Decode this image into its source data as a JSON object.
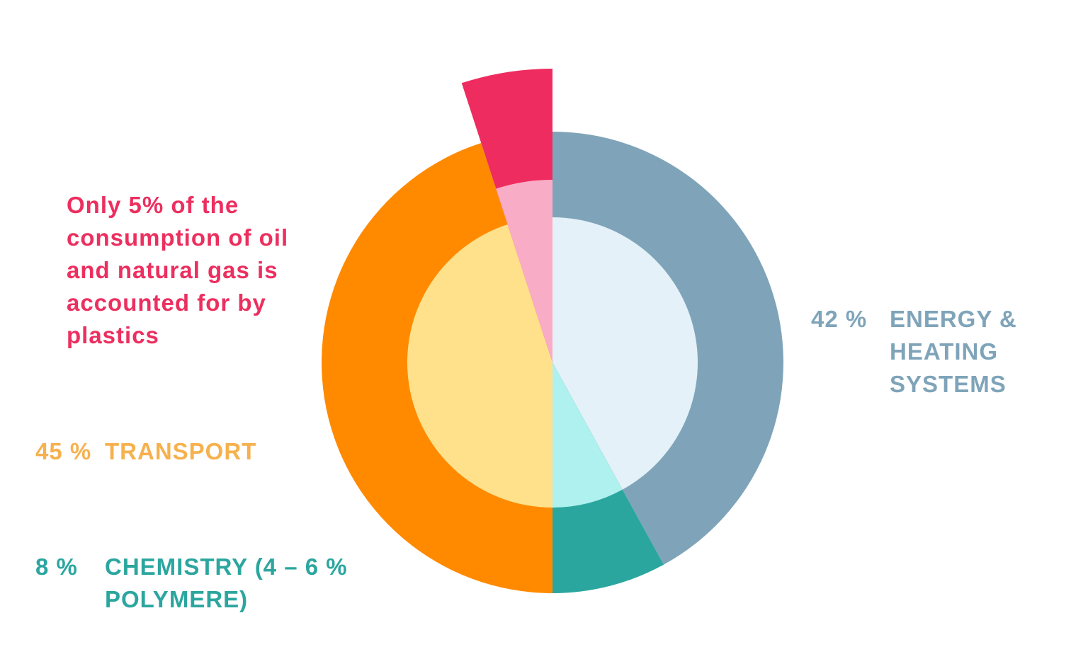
{
  "chart_data": {
    "type": "pie",
    "categories": [
      "ENERGY & HEATING SYSTEMS",
      "CHEMISTRY (4 – 6 % POLYMERE)",
      "TRANSPORT",
      null
    ],
    "values": [
      42,
      8,
      45,
      5
    ],
    "value_labels": [
      "42 %",
      "8 %",
      "45 %",
      null
    ],
    "colors": [
      "#7fa4b9",
      "#2ba69f",
      "#ff8a00",
      "#ee2c5f"
    ],
    "inner_colors": [
      "#e4f1f9",
      "#aef1ee",
      "#ffe18c",
      "#f9acc6"
    ],
    "label_colors": [
      "#7fa4b9",
      "#2ba69f",
      "#f6b14e",
      "#ec2f5f"
    ],
    "annotation": "Only 5% of the consumption of oil and natural gas is accounted for by plastics"
  }
}
